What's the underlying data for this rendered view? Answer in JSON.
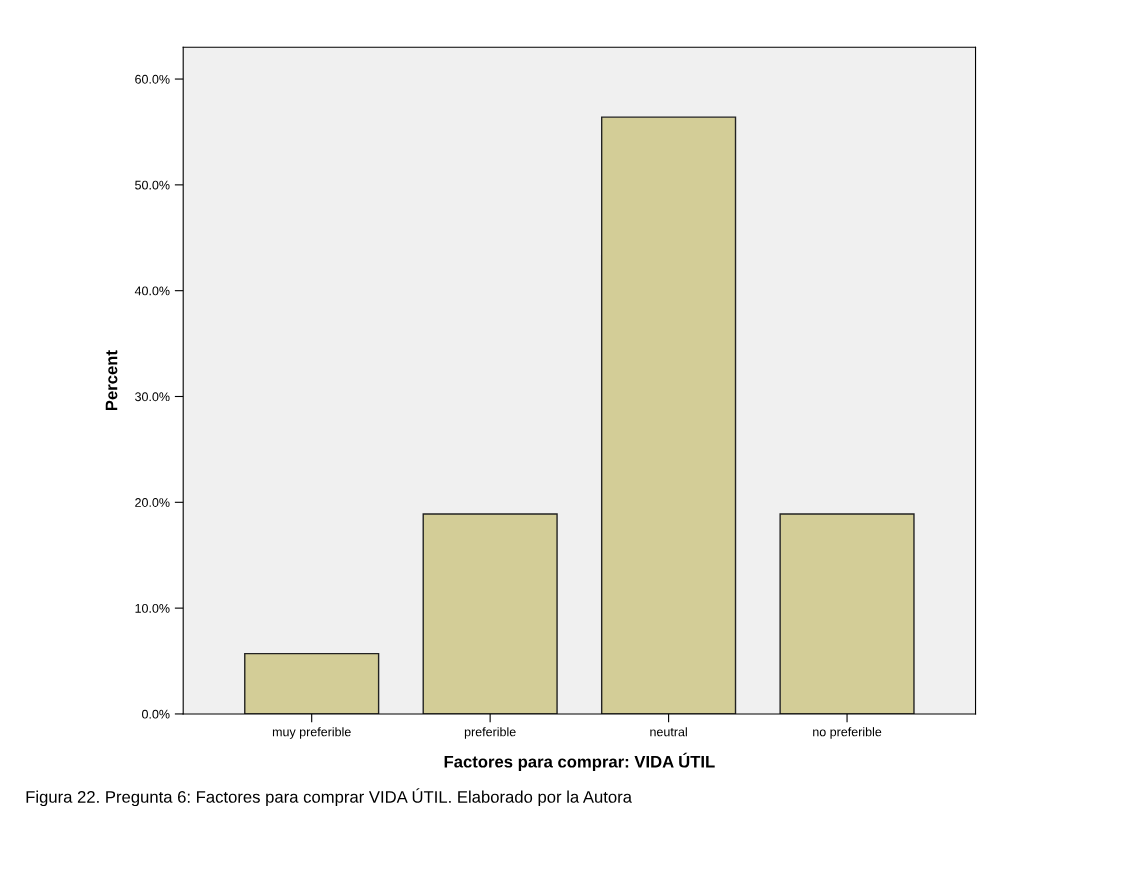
{
  "chart_data": {
    "type": "bar",
    "categories": [
      "muy preferible",
      "preferible",
      "neutral",
      "no preferible"
    ],
    "values": [
      5.7,
      18.9,
      56.4,
      18.9
    ],
    "color": "#d3cd97",
    "xlabel": "Factores para comprar: VIDA ÚTIL",
    "ylabel": "Percent",
    "ylim": [
      0,
      63
    ],
    "yticks": [
      {
        "value": 0,
        "label": "0.0%"
      },
      {
        "value": 10,
        "label": "10.0%"
      },
      {
        "value": 20,
        "label": "20.0%"
      },
      {
        "value": 30,
        "label": "30.0%"
      },
      {
        "value": 40,
        "label": "40.0%"
      },
      {
        "value": 50,
        "label": "50.0%"
      },
      {
        "value": 60,
        "label": "60.0%"
      }
    ],
    "grid": false,
    "annotations": [
      "Figura 22. Pregunta 6: Factores para comprar VIDA ÚTIL. Elaborado por la Autora"
    ]
  }
}
